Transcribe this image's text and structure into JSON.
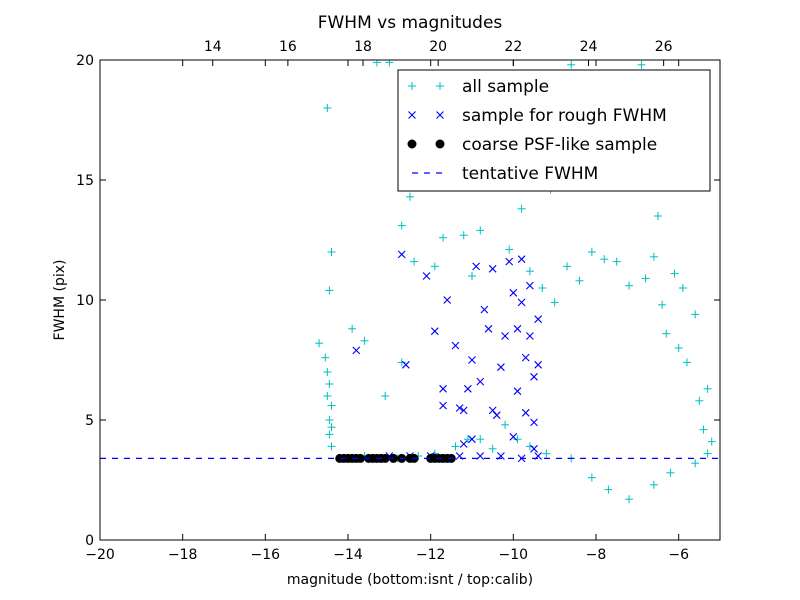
{
  "chart_data": {
    "type": "scatter",
    "title": "FWHM vs magnitudes",
    "xlabel": "magnitude (bottom:isnt / top:calib)",
    "ylabel": "FWHM (pix)",
    "xlim": [
      -20,
      -5
    ],
    "ylim": [
      0,
      20
    ],
    "top_xlim": [
      11.0,
      27.5
    ],
    "x_ticks": [
      "−20",
      "−18",
      "−16",
      "−14",
      "−12",
      "−10",
      "−8",
      "−6"
    ],
    "x_tick_values": [
      -20,
      -18,
      -16,
      -14,
      -12,
      -10,
      -8,
      -6
    ],
    "y_ticks": [
      "0",
      "5",
      "10",
      "15",
      "20"
    ],
    "y_tick_values": [
      0,
      5,
      10,
      15,
      20
    ],
    "top_x_ticks": [
      "14",
      "16",
      "18",
      "20",
      "22",
      "24",
      "26"
    ],
    "top_x_tick_values": [
      14,
      16,
      18,
      20,
      22,
      24,
      26
    ],
    "grid": false,
    "legend_position": "top-right",
    "series": [
      {
        "name": "all sample",
        "marker": "+",
        "color": "#00bfbf",
        "points": [
          [
            -14.5,
            18.0
          ],
          [
            -14.4,
            12.0
          ],
          [
            -14.45,
            10.4
          ],
          [
            -14.7,
            8.2
          ],
          [
            -14.55,
            7.6
          ],
          [
            -14.5,
            7.0
          ],
          [
            -14.45,
            6.5
          ],
          [
            -14.5,
            6.0
          ],
          [
            -14.4,
            5.6
          ],
          [
            -14.45,
            5.0
          ],
          [
            -14.4,
            4.7
          ],
          [
            -14.45,
            4.4
          ],
          [
            -14.4,
            3.9
          ],
          [
            -13.9,
            8.8
          ],
          [
            -13.6,
            8.3
          ],
          [
            -13.3,
            19.9
          ],
          [
            -13.0,
            19.9
          ],
          [
            -12.7,
            7.4
          ],
          [
            -13.1,
            6.0
          ],
          [
            -12.5,
            14.3
          ],
          [
            -12.7,
            13.1
          ],
          [
            -12.4,
            11.6
          ],
          [
            -11.9,
            11.4
          ],
          [
            -11.7,
            12.6
          ],
          [
            -11.2,
            12.7
          ],
          [
            -11.0,
            11.0
          ],
          [
            -10.8,
            12.9
          ],
          [
            -10.3,
            15.5
          ],
          [
            -10.1,
            12.1
          ],
          [
            -9.8,
            13.8
          ],
          [
            -9.7,
            16.8
          ],
          [
            -9.4,
            17.3
          ],
          [
            -9.1,
            14.6
          ],
          [
            -8.6,
            19.8
          ],
          [
            -8.3,
            16.2
          ],
          [
            -8.0,
            15.4
          ],
          [
            -7.7,
            18.9
          ],
          [
            -7.3,
            19.1
          ],
          [
            -6.9,
            19.8
          ],
          [
            -6.5,
            13.5
          ],
          [
            -6.1,
            11.1
          ],
          [
            -5.9,
            10.5
          ],
          [
            -5.6,
            9.4
          ],
          [
            -5.3,
            6.3
          ],
          [
            -5.2,
            4.1
          ],
          [
            -9.6,
            11.2
          ],
          [
            -9.3,
            10.5
          ],
          [
            -9.0,
            9.9
          ],
          [
            -8.7,
            11.4
          ],
          [
            -8.4,
            10.8
          ],
          [
            -8.1,
            12.0
          ],
          [
            -7.8,
            11.7
          ],
          [
            -7.5,
            11.6
          ],
          [
            -7.2,
            10.6
          ],
          [
            -6.8,
            10.9
          ],
          [
            -6.6,
            11.8
          ],
          [
            -6.4,
            9.8
          ],
          [
            -6.3,
            8.6
          ],
          [
            -6.0,
            8.0
          ],
          [
            -5.8,
            7.4
          ],
          [
            -5.5,
            5.8
          ],
          [
            -5.4,
            4.6
          ],
          [
            -5.3,
            3.6
          ],
          [
            -5.6,
            3.2
          ],
          [
            -6.2,
            2.8
          ],
          [
            -6.6,
            2.3
          ],
          [
            -7.2,
            1.7
          ],
          [
            -7.7,
            2.1
          ],
          [
            -8.1,
            2.6
          ],
          [
            -8.6,
            3.4
          ],
          [
            -9.2,
            3.6
          ],
          [
            -9.6,
            3.9
          ],
          [
            -9.9,
            4.2
          ],
          [
            -10.2,
            4.8
          ],
          [
            -10.5,
            3.8
          ],
          [
            -10.8,
            4.2
          ],
          [
            -11.1,
            4.2
          ],
          [
            -11.4,
            3.9
          ],
          [
            -11.9,
            3.6
          ],
          [
            -12.3,
            3.5
          ],
          [
            -12.8,
            3.4
          ],
          [
            -13.2,
            3.4
          ],
          [
            -13.6,
            3.5
          ]
        ]
      },
      {
        "name": "sample for rough FWHM",
        "marker": "x",
        "color": "#0000ff",
        "points": [
          [
            -13.8,
            7.9
          ],
          [
            -12.7,
            11.9
          ],
          [
            -12.6,
            7.3
          ],
          [
            -12.1,
            11.0
          ],
          [
            -11.9,
            8.7
          ],
          [
            -11.7,
            6.3
          ],
          [
            -11.7,
            5.6
          ],
          [
            -11.6,
            10.0
          ],
          [
            -11.4,
            8.1
          ],
          [
            -11.3,
            5.5
          ],
          [
            -11.2,
            5.4
          ],
          [
            -11.1,
            6.3
          ],
          [
            -11.0,
            7.5
          ],
          [
            -11.2,
            4.0
          ],
          [
            -11.0,
            4.2
          ],
          [
            -10.9,
            11.4
          ],
          [
            -10.8,
            6.6
          ],
          [
            -10.7,
            9.6
          ],
          [
            -10.6,
            8.8
          ],
          [
            -10.5,
            11.3
          ],
          [
            -10.5,
            5.4
          ],
          [
            -10.4,
            5.2
          ],
          [
            -10.3,
            7.2
          ],
          [
            -10.2,
            8.5
          ],
          [
            -10.1,
            11.6
          ],
          [
            -10.0,
            10.3
          ],
          [
            -10.0,
            4.3
          ],
          [
            -9.9,
            6.2
          ],
          [
            -9.9,
            8.8
          ],
          [
            -9.8,
            9.9
          ],
          [
            -9.8,
            11.7
          ],
          [
            -9.7,
            7.6
          ],
          [
            -9.7,
            5.3
          ],
          [
            -9.6,
            8.5
          ],
          [
            -9.6,
            10.6
          ],
          [
            -9.5,
            6.8
          ],
          [
            -9.5,
            4.9
          ],
          [
            -9.4,
            9.2
          ],
          [
            -9.4,
            7.3
          ],
          [
            -9.5,
            3.8
          ],
          [
            -10.3,
            3.5
          ],
          [
            -10.8,
            3.5
          ],
          [
            -11.3,
            3.5
          ],
          [
            -12.0,
            3.5
          ],
          [
            -12.5,
            3.5
          ],
          [
            -13.0,
            3.5
          ],
          [
            -9.8,
            3.4
          ],
          [
            -9.4,
            3.5
          ]
        ]
      },
      {
        "name": "coarse PSF-like sample",
        "marker": "o",
        "color": "#000000",
        "points": [
          [
            -14.2,
            3.4
          ],
          [
            -14.1,
            3.4
          ],
          [
            -14.0,
            3.4
          ],
          [
            -13.9,
            3.4
          ],
          [
            -13.8,
            3.4
          ],
          [
            -13.7,
            3.4
          ],
          [
            -13.5,
            3.4
          ],
          [
            -13.4,
            3.4
          ],
          [
            -13.3,
            3.4
          ],
          [
            -13.2,
            3.4
          ],
          [
            -13.1,
            3.4
          ],
          [
            -12.9,
            3.4
          ],
          [
            -12.7,
            3.4
          ],
          [
            -12.5,
            3.4
          ],
          [
            -12.4,
            3.4
          ],
          [
            -12.0,
            3.4
          ],
          [
            -11.9,
            3.4
          ],
          [
            -11.8,
            3.4
          ],
          [
            -11.7,
            3.4
          ],
          [
            -11.6,
            3.4
          ],
          [
            -11.5,
            3.4
          ]
        ]
      },
      {
        "name": "tentative FWHM",
        "marker": "dashed-line",
        "color": "#0000ff",
        "value": 3.4
      }
    ]
  }
}
